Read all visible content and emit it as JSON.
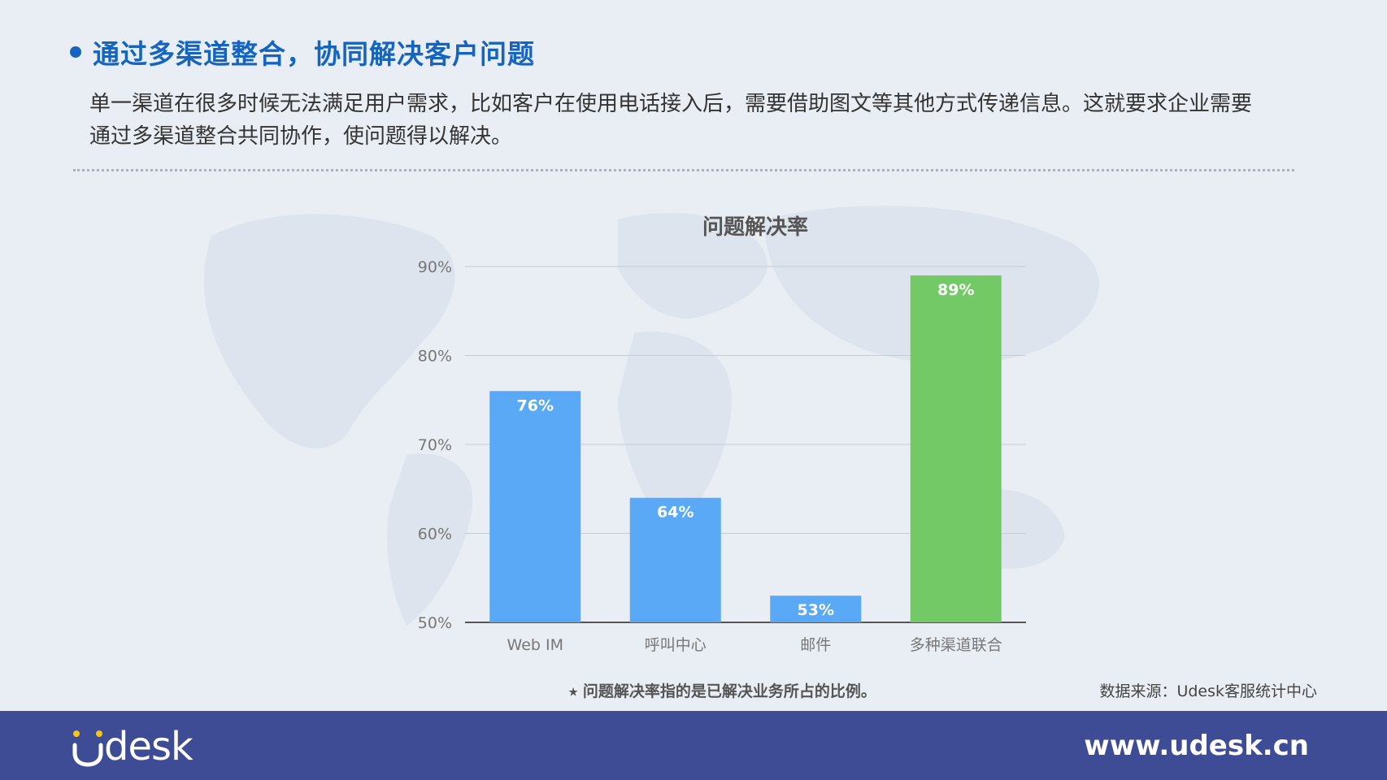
{
  "header": {
    "title": "通过多渠道整合，协同解决客户问题",
    "description": "单一渠道在很多时候无法满足用户需求，比如客户在使用电话接入后，需要借助图文等其他方式传递信息。这就要求企业需要通过多渠道整合共同协作，使问题得以解决。"
  },
  "chart_data": {
    "type": "bar",
    "title": "问题解决率",
    "categories": [
      "Web IM",
      "呼叫中心",
      "邮件",
      "多种渠道联合"
    ],
    "values": [
      76,
      64,
      53,
      89
    ],
    "data_labels": [
      "76%",
      "64%",
      "53%",
      "89%"
    ],
    "ylim": [
      50,
      90
    ],
    "yticks": [
      50,
      60,
      70,
      80,
      90
    ],
    "ytick_labels": [
      "50%",
      "60%",
      "70%",
      "80%",
      "90%"
    ],
    "grid": true,
    "colors": [
      "#5aa9f6",
      "#5aa9f6",
      "#5aa9f6",
      "#74c967"
    ]
  },
  "footnote": "⭑ 问题解决率指的是已解决业务所占的比例。",
  "source": "数据来源：Udesk客服统计中心",
  "footer": {
    "logo": "Udesk",
    "website": "www.udesk.cn"
  },
  "colors": {
    "title_blue": "#1565c0",
    "footer_bg": "#3d4c94",
    "background": "#e9eef5"
  }
}
